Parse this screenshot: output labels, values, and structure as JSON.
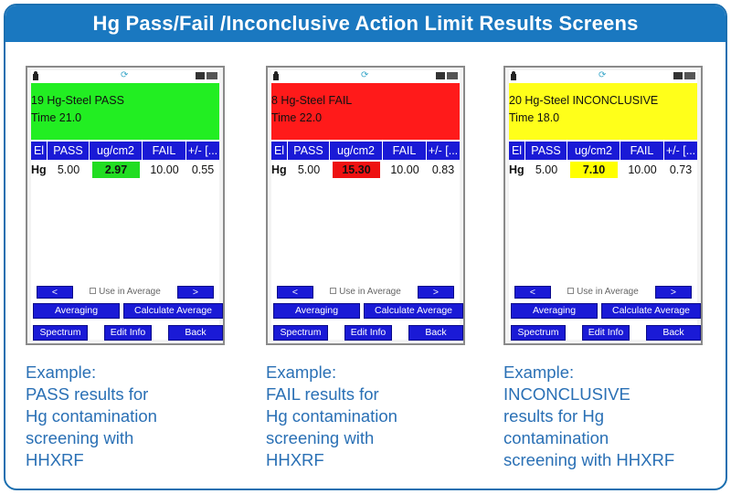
{
  "banner": {
    "title": "Hg Pass/Fail /Inconclusive Action Limit Results Screens"
  },
  "table_headers": {
    "el": "El",
    "pass": "PASS",
    "conc": "ug/cm2",
    "fail": "FAIL",
    "err": "+/- [..."
  },
  "controls": {
    "prev": "<",
    "next": ">",
    "use_in_average": "Use in Average",
    "averaging": "Averaging",
    "calculate_average": "Calculate Average",
    "spectrum": "Spectrum",
    "edit_info": "Edit Info",
    "back": "Back"
  },
  "status_icon": "refresh-icon",
  "screens": [
    {
      "line1": "19 Hg-Steel    PASS",
      "line2": "Time 21.0",
      "header_color": "#22ee22",
      "conc_color": "#22dd22",
      "row": {
        "el": "Hg",
        "pass": "5.00",
        "conc": "2.97",
        "fail": "10.00",
        "err": "0.55"
      },
      "caption": [
        "Example:",
        "PASS results for",
        "Hg contamination",
        "screening with",
        "HHXRF"
      ]
    },
    {
      "line1": "8 Hg-Steel    FAIL",
      "line2": "Time 22.0",
      "header_color": "#ff1a1a",
      "conc_color": "#ee1111",
      "row": {
        "el": "Hg",
        "pass": "5.00",
        "conc": "15.30",
        "fail": "10.00",
        "err": "0.83"
      },
      "caption": [
        "Example:",
        "FAIL results for",
        "Hg contamination",
        "screening with",
        "HHXRF"
      ]
    },
    {
      "line1": "20 Hg-Steel    INCONCLUSIVE",
      "line2": "Time 18.0",
      "header_color": "#ffff1a",
      "conc_color": "#ffff00",
      "row": {
        "el": "Hg",
        "pass": "5.00",
        "conc": "7.10",
        "fail": "10.00",
        "err": "0.73"
      },
      "caption": [
        "Example:",
        "INCONCLUSIVE",
        "results for Hg",
        "contamination",
        "screening with HHXRF"
      ]
    }
  ]
}
